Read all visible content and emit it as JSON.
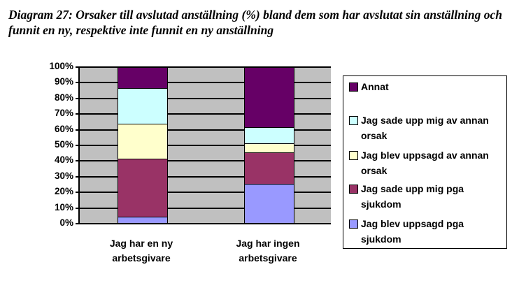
{
  "title": "Diagram 27: Orsaker till avslutad anställning (%) bland dem som har avslutat sin anställning och funnit en ny, respektive inte funnit en ny anställning",
  "chart_data": {
    "type": "bar",
    "stacked": true,
    "percent_stacked": true,
    "title": "Diagram 27: Orsaker till avslutad anställning (%) bland dem som har avslutat sin anställning och funnit en ny, respektive inte funnit en ny anställning",
    "xlabel": "",
    "ylabel": "",
    "ylim": [
      0,
      100
    ],
    "yticks": [
      "0%",
      "10%",
      "20%",
      "30%",
      "40%",
      "50%",
      "60%",
      "70%",
      "80%",
      "90%",
      "100%"
    ],
    "categories": [
      "Jag har en ny arbetsgivare",
      "Jag har ingen arbetsgivare"
    ],
    "series": [
      {
        "name": "Jag blev uppsagd pga sjukdom",
        "color": "#9999ff",
        "values": [
          4,
          25
        ]
      },
      {
        "name": "Jag sade upp mig pga sjukdom",
        "color": "#993366",
        "values": [
          37,
          20
        ]
      },
      {
        "name": "Jag blev uppsagd av annan orsak",
        "color": "#ffffcc",
        "values": [
          22.5,
          6
        ]
      },
      {
        "name": "Jag sade upp mig av annan orsak",
        "color": "#ccffff",
        "values": [
          22.5,
          10
        ]
      },
      {
        "name": "Annat",
        "color": "#660066",
        "values": [
          14,
          39
        ]
      }
    ],
    "grid": true,
    "plot_background": "#c0c0c0",
    "legend_position": "right"
  },
  "axis": {
    "yticks": [
      "100%",
      "90%",
      "80%",
      "70%",
      "60%",
      "50%",
      "40%",
      "30%",
      "20%",
      "10%",
      "0%"
    ]
  },
  "xlabels": [
    {
      "line1": "Jag har en ny",
      "line2": "arbetsgivare"
    },
    {
      "line1": "Jag har ingen",
      "line2": "arbetsgivare"
    }
  ],
  "legend": [
    {
      "line1": "Annat",
      "line2": "",
      "color": "#660066"
    },
    {
      "line1": "Jag sade upp mig av annan",
      "line2": "orsak",
      "color": "#ccffff"
    },
    {
      "line1": "Jag blev uppsagd av annan",
      "line2": "orsak",
      "color": "#ffffcc"
    },
    {
      "line1": "Jag sade upp mig pga",
      "line2": "sjukdom",
      "color": "#993366"
    },
    {
      "line1": "Jag blev uppsagd pga",
      "line2": "sjukdom",
      "color": "#9999ff"
    }
  ]
}
